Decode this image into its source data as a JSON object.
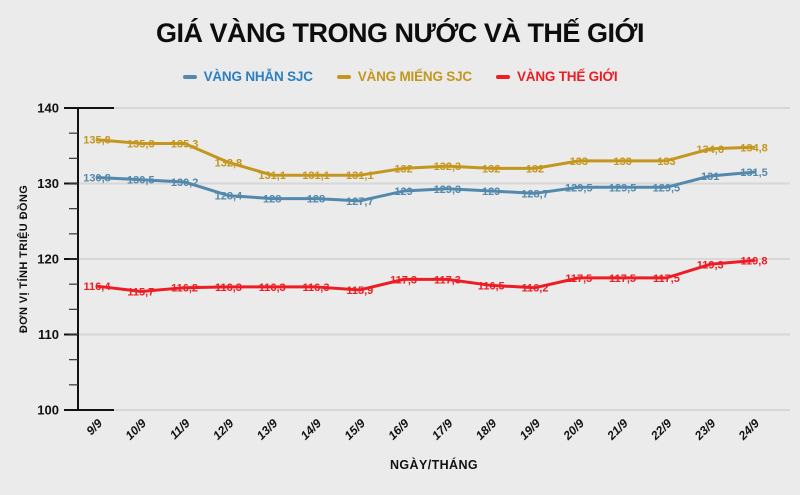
{
  "title": "GIÁ VÀNG TRONG NƯỚC VÀ THẾ GIỚI",
  "legend": [
    {
      "label": "VÀNG NHẪN SJC",
      "text_color": "#2b7fc2",
      "marker_color": "#5389ac"
    },
    {
      "label": "VÀNG MIẾNG SJC",
      "text_color": "#c3961d",
      "marker_color": "#c3961d"
    },
    {
      "label": "VÀNG THẾ GIỚI",
      "text_color": "#ee1c23",
      "marker_color": "#ee1c23"
    }
  ],
  "chart_data": {
    "type": "line",
    "title": "GIÁ VÀNG TRONG NƯỚC VÀ THẾ GIỚI",
    "x": [
      "9/9",
      "10/9",
      "11/9",
      "12/9",
      "13/9",
      "14/9",
      "15/9",
      "16/9",
      "17/9",
      "18/9",
      "19/9",
      "20/9",
      "21/9",
      "22/9",
      "23/9",
      "24/9"
    ],
    "series": [
      {
        "name": "VÀNG NHẪN SJC",
        "color": "#5389ac",
        "values": [
          130.8,
          130.5,
          130.2,
          128.4,
          128,
          128,
          127.7,
          129,
          129.3,
          129,
          128.7,
          129.5,
          129.5,
          129.5,
          131,
          131.5
        ]
      },
      {
        "name": "VÀNG MIẾNG SJC",
        "color": "#c3961d",
        "values": [
          135.8,
          135.3,
          135.3,
          132.8,
          131.1,
          131.1,
          131.1,
          132,
          132.3,
          132,
          132,
          133,
          133,
          133,
          134.6,
          134.8
        ]
      },
      {
        "name": "VÀNG THẾ GIỚI",
        "color": "#ee1c23",
        "values": [
          116.4,
          115.7,
          116.2,
          116.3,
          116.3,
          116.3,
          115.9,
          117.3,
          117.3,
          116.5,
          116.2,
          117.5,
          117.5,
          117.5,
          119.3,
          119.8
        ]
      }
    ],
    "xlabel": "NGÀY/THÁNG",
    "ylabel": "ĐƠN VỊ TÍNH TRIỆU ĐỒNG",
    "ylim": [
      100,
      140
    ],
    "yticks": [
      100,
      110,
      120,
      130,
      140
    ],
    "minor_ticks_per_interval": 2,
    "decimal_separator": ",",
    "grid": true,
    "legend_position": "top"
  },
  "colors": {
    "background": "#ebebeb",
    "grid": "#d7d7d7",
    "axis": "#111111",
    "title_text": "#0d0d0d"
  }
}
